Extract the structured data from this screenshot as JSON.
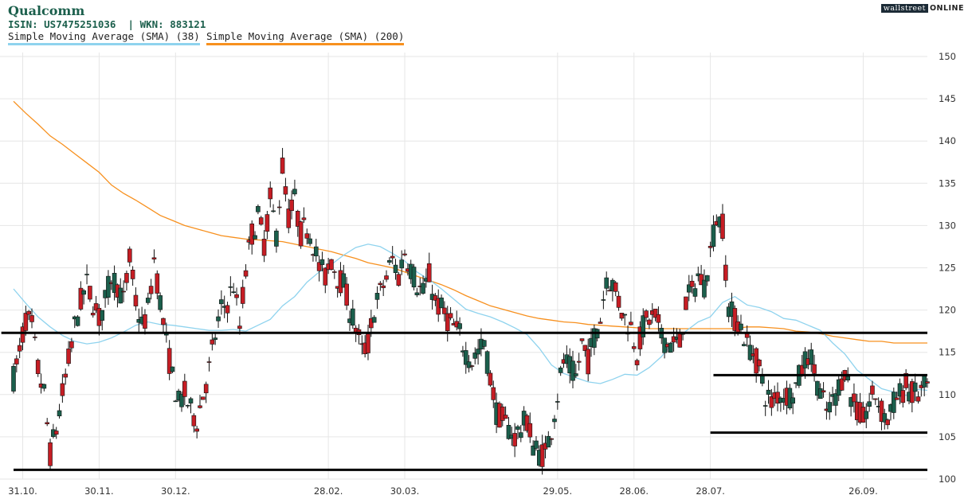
{
  "header": {
    "title": "Qualcomm",
    "identifiers": "ISIN: US7475251036  | WKN: 883121",
    "logo_box": "wallstreet",
    "logo_text": "ONLINE"
  },
  "legend": [
    {
      "label": "Simple Moving Average (SMA) (38)",
      "color": "#8fd3ee"
    },
    {
      "label": "Simple Moving Average (SMA) (200)",
      "color": "#f7901e"
    }
  ],
  "chart_data": {
    "type": "candlestick",
    "title": "Qualcomm",
    "x_tick_labels": [
      "31.10.",
      "30.11.",
      "30.12.",
      "28.02.",
      "30.03.",
      "29.05.",
      "28.06.",
      "28.07.",
      "26.09."
    ],
    "x_tick_positions": [
      3,
      28,
      53,
      103,
      128,
      178,
      203,
      228,
      278
    ],
    "y_ticks": [
      100,
      105,
      110,
      115,
      120,
      125,
      130,
      135,
      140,
      145,
      150
    ],
    "ylim": [
      100,
      150
    ],
    "x_count": 300,
    "grid": true,
    "colors": {
      "up": "#1b5f4c",
      "down": "#c61d24",
      "sma38": "#8fd3ee",
      "sma200": "#f7901e",
      "level": "#000000"
    },
    "sma38": [
      [
        0,
        122.5
      ],
      [
        4,
        120.8
      ],
      [
        8,
        119.2
      ],
      [
        12,
        118.0
      ],
      [
        16,
        117.0
      ],
      [
        20,
        116.3
      ],
      [
        24,
        116.0
      ],
      [
        28,
        116.2
      ],
      [
        32,
        116.7
      ],
      [
        36,
        117.4
      ],
      [
        40,
        118.2
      ],
      [
        44,
        118.6
      ],
      [
        48,
        118.3
      ],
      [
        52,
        118.2
      ],
      [
        56,
        118.0
      ],
      [
        60,
        117.8
      ],
      [
        64,
        117.6
      ],
      [
        68,
        117.6
      ],
      [
        72,
        117.7
      ],
      [
        76,
        117.5
      ],
      [
        80,
        118.2
      ],
      [
        84,
        118.9
      ],
      [
        88,
        120.5
      ],
      [
        92,
        121.6
      ],
      [
        96,
        123.3
      ],
      [
        100,
        124.5
      ],
      [
        104,
        125.4
      ],
      [
        108,
        126.5
      ],
      [
        112,
        127.4
      ],
      [
        116,
        127.8
      ],
      [
        120,
        127.5
      ],
      [
        124,
        126.7
      ],
      [
        128,
        125.8
      ],
      [
        132,
        124.5
      ],
      [
        136,
        123.6
      ],
      [
        140,
        122.5
      ],
      [
        144,
        121.3
      ],
      [
        148,
        120.1
      ],
      [
        152,
        119.6
      ],
      [
        156,
        119.2
      ],
      [
        160,
        118.6
      ],
      [
        164,
        117.9
      ],
      [
        168,
        117.1
      ],
      [
        172,
        115.5
      ],
      [
        176,
        113.5
      ],
      [
        180,
        112.5
      ],
      [
        184,
        112.0
      ],
      [
        188,
        111.5
      ],
      [
        192,
        111.3
      ],
      [
        196,
        111.8
      ],
      [
        200,
        112.4
      ],
      [
        204,
        112.3
      ],
      [
        208,
        113.2
      ],
      [
        212,
        114.5
      ],
      [
        216,
        116.3
      ],
      [
        220,
        117.5
      ],
      [
        224,
        118.6
      ],
      [
        228,
        119.2
      ],
      [
        232,
        120.9
      ],
      [
        236,
        121.6
      ],
      [
        240,
        120.6
      ],
      [
        244,
        120.3
      ],
      [
        248,
        119.8
      ],
      [
        252,
        119.0
      ],
      [
        256,
        118.8
      ],
      [
        260,
        118.2
      ],
      [
        264,
        117.6
      ],
      [
        268,
        116.1
      ],
      [
        272,
        114.8
      ],
      [
        276,
        112.9
      ],
      [
        280,
        111.8
      ],
      [
        284,
        110.7
      ],
      [
        288,
        110.3
      ],
      [
        292,
        109.9
      ],
      [
        296,
        110.6
      ],
      [
        299,
        110.5
      ]
    ],
    "sma200": [
      [
        0,
        144.7
      ],
      [
        4,
        143.3
      ],
      [
        8,
        142.0
      ],
      [
        12,
        140.6
      ],
      [
        16,
        139.6
      ],
      [
        20,
        138.5
      ],
      [
        24,
        137.4
      ],
      [
        28,
        136.3
      ],
      [
        32,
        134.8
      ],
      [
        36,
        133.8
      ],
      [
        40,
        133.0
      ],
      [
        44,
        132.1
      ],
      [
        48,
        131.2
      ],
      [
        52,
        130.6
      ],
      [
        56,
        130.0
      ],
      [
        60,
        129.6
      ],
      [
        64,
        129.2
      ],
      [
        68,
        128.8
      ],
      [
        72,
        128.6
      ],
      [
        76,
        128.4
      ],
      [
        80,
        128.3
      ],
      [
        84,
        128.2
      ],
      [
        88,
        128.1
      ],
      [
        92,
        127.8
      ],
      [
        96,
        127.5
      ],
      [
        100,
        127.2
      ],
      [
        104,
        126.9
      ],
      [
        108,
        126.5
      ],
      [
        112,
        126.1
      ],
      [
        116,
        125.6
      ],
      [
        120,
        125.3
      ],
      [
        124,
        125.0
      ],
      [
        128,
        124.5
      ],
      [
        132,
        124.0
      ],
      [
        136,
        123.5
      ],
      [
        140,
        123.0
      ],
      [
        144,
        122.4
      ],
      [
        148,
        121.7
      ],
      [
        152,
        121.1
      ],
      [
        156,
        120.5
      ],
      [
        160,
        120.1
      ],
      [
        164,
        119.7
      ],
      [
        168,
        119.3
      ],
      [
        172,
        119.0
      ],
      [
        176,
        118.8
      ],
      [
        180,
        118.6
      ],
      [
        184,
        118.5
      ],
      [
        188,
        118.3
      ],
      [
        192,
        118.2
      ],
      [
        196,
        118.1
      ],
      [
        200,
        118.0
      ],
      [
        204,
        117.9
      ],
      [
        208,
        117.8
      ],
      [
        212,
        117.8
      ],
      [
        216,
        117.8
      ],
      [
        220,
        117.8
      ],
      [
        224,
        117.8
      ],
      [
        228,
        117.8
      ],
      [
        232,
        117.8
      ],
      [
        236,
        117.8
      ],
      [
        240,
        118.0
      ],
      [
        244,
        118.0
      ],
      [
        248,
        117.9
      ],
      [
        252,
        117.8
      ],
      [
        256,
        117.5
      ],
      [
        260,
        117.4
      ],
      [
        264,
        117.2
      ],
      [
        268,
        116.9
      ],
      [
        272,
        116.7
      ],
      [
        276,
        116.5
      ],
      [
        280,
        116.3
      ],
      [
        284,
        116.3
      ],
      [
        288,
        116.1
      ],
      [
        292,
        116.1
      ],
      [
        296,
        116.1
      ],
      [
        299,
        116.1
      ]
    ],
    "levels": [
      {
        "price": 117.3,
        "from": -4,
        "to": 299
      },
      {
        "price": 112.3,
        "from": 229,
        "to": 299
      },
      {
        "price": 105.5,
        "from": 228,
        "to": 299
      },
      {
        "price": 101.1,
        "from": 0,
        "to": 299
      }
    ],
    "anchors": [
      [
        0,
        112
      ],
      [
        2,
        115
      ],
      [
        4,
        119
      ],
      [
        6,
        118
      ],
      [
        8,
        113
      ],
      [
        10,
        110
      ],
      [
        12,
        103
      ],
      [
        14,
        106
      ],
      [
        16,
        110
      ],
      [
        18,
        114
      ],
      [
        20,
        118
      ],
      [
        22,
        121
      ],
      [
        24,
        123
      ],
      [
        26,
        121
      ],
      [
        28,
        119
      ],
      [
        30,
        121
      ],
      [
        32,
        124
      ],
      [
        34,
        123
      ],
      [
        36,
        121
      ],
      [
        38,
        126
      ],
      [
        40,
        121
      ],
      [
        42,
        118
      ],
      [
        44,
        120
      ],
      [
        46,
        126
      ],
      [
        48,
        121
      ],
      [
        50,
        116
      ],
      [
        52,
        112
      ],
      [
        54,
        109
      ],
      [
        56,
        110
      ],
      [
        58,
        108
      ],
      [
        60,
        107
      ],
      [
        62,
        110
      ],
      [
        64,
        113
      ],
      [
        66,
        117
      ],
      [
        68,
        120
      ],
      [
        70,
        121
      ],
      [
        72,
        123
      ],
      [
        74,
        118
      ],
      [
        76,
        125
      ],
      [
        78,
        129
      ],
      [
        80,
        131
      ],
      [
        82,
        128
      ],
      [
        84,
        133
      ],
      [
        86,
        129
      ],
      [
        88,
        137
      ],
      [
        90,
        131
      ],
      [
        92,
        133
      ],
      [
        94,
        129
      ],
      [
        96,
        130
      ],
      [
        98,
        128
      ],
      [
        100,
        125
      ],
      [
        102,
        124
      ],
      [
        104,
        126
      ],
      [
        106,
        124
      ],
      [
        108,
        123
      ],
      [
        110,
        120
      ],
      [
        112,
        118
      ],
      [
        114,
        115
      ],
      [
        116,
        116
      ],
      [
        118,
        120
      ],
      [
        120,
        122
      ],
      [
        122,
        124
      ],
      [
        124,
        126
      ],
      [
        126,
        124
      ],
      [
        128,
        127
      ],
      [
        130,
        125
      ],
      [
        132,
        123
      ],
      [
        134,
        122
      ],
      [
        136,
        124
      ],
      [
        138,
        121
      ],
      [
        140,
        120
      ],
      [
        142,
        119
      ],
      [
        144,
        118
      ],
      [
        146,
        117
      ],
      [
        148,
        115
      ],
      [
        150,
        114
      ],
      [
        152,
        115
      ],
      [
        154,
        116
      ],
      [
        156,
        112
      ],
      [
        158,
        108
      ],
      [
        160,
        107
      ],
      [
        162,
        106
      ],
      [
        164,
        105
      ],
      [
        166,
        106
      ],
      [
        168,
        107
      ],
      [
        170,
        104
      ],
      [
        172,
        103
      ],
      [
        174,
        103
      ],
      [
        176,
        106
      ],
      [
        178,
        110
      ],
      [
        180,
        114
      ],
      [
        182,
        113
      ],
      [
        184,
        112
      ],
      [
        186,
        116
      ],
      [
        188,
        114
      ],
      [
        190,
        117
      ],
      [
        192,
        119
      ],
      [
        194,
        124
      ],
      [
        196,
        123
      ],
      [
        198,
        121
      ],
      [
        200,
        119
      ],
      [
        202,
        118
      ],
      [
        204,
        115
      ],
      [
        206,
        118
      ],
      [
        208,
        119
      ],
      [
        210,
        119
      ],
      [
        212,
        117
      ],
      [
        214,
        116
      ],
      [
        216,
        116
      ],
      [
        218,
        116
      ],
      [
        220,
        121
      ],
      [
        222,
        122
      ],
      [
        224,
        124
      ],
      [
        226,
        123
      ],
      [
        228,
        127
      ],
      [
        230,
        131
      ],
      [
        232,
        130
      ],
      [
        234,
        120
      ],
      [
        236,
        119
      ],
      [
        238,
        118
      ],
      [
        240,
        116
      ],
      [
        242,
        115
      ],
      [
        244,
        113
      ],
      [
        246,
        110
      ],
      [
        248,
        109
      ],
      [
        250,
        110
      ],
      [
        252,
        110
      ],
      [
        254,
        110
      ],
      [
        256,
        111
      ],
      [
        258,
        113
      ],
      [
        260,
        115
      ],
      [
        262,
        113
      ],
      [
        264,
        110
      ],
      [
        266,
        108
      ],
      [
        268,
        109
      ],
      [
        270,
        111
      ],
      [
        272,
        113
      ],
      [
        274,
        110
      ],
      [
        276,
        108
      ],
      [
        278,
        107
      ],
      [
        280,
        109
      ],
      [
        282,
        110
      ],
      [
        284,
        108
      ],
      [
        286,
        107
      ],
      [
        288,
        109
      ],
      [
        290,
        110
      ],
      [
        292,
        111
      ],
      [
        294,
        110
      ],
      [
        296,
        110
      ],
      [
        299,
        111
      ]
    ]
  }
}
